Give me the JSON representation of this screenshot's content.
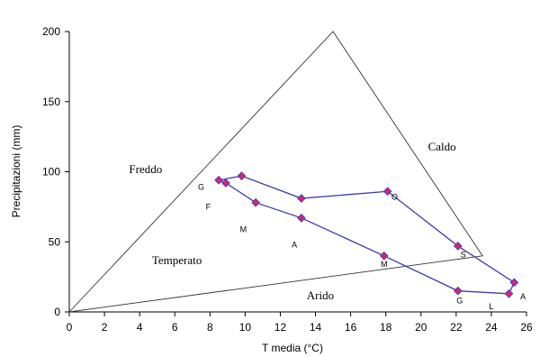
{
  "chart_data": {
    "type": "scatter",
    "xlabel": "T  media (°C)",
    "ylabel": "Precipitazioni (mm)",
    "xlim": [
      0,
      26
    ],
    "ylim": [
      0,
      200
    ],
    "x_ticks": [
      "0",
      "2",
      "4",
      "6",
      "8",
      "10",
      "12",
      "14",
      "16",
      "18",
      "20",
      "22",
      "24",
      "26"
    ],
    "y_ticks": [
      "0",
      "50",
      "100",
      "150",
      "200"
    ],
    "grid": false,
    "line_color": "#3b3bb0",
    "marker_fill": "#e0206a",
    "marker_stroke": "#4444c0",
    "climograph": {
      "x": [
        8.5,
        9.8,
        13.2,
        18.1,
        22.1,
        25.3,
        25.0,
        22.1,
        17.9,
        13.2,
        10.6,
        8.9
      ],
      "y": [
        94,
        97,
        81,
        86,
        47,
        21,
        13,
        15,
        40,
        67,
        78,
        92
      ]
    },
    "month_labels": [
      {
        "text": "G",
        "x": 7.5,
        "y": 87
      },
      {
        "text": "F",
        "x": 7.9,
        "y": 73
      },
      {
        "text": "M",
        "x": 9.9,
        "y": 57
      },
      {
        "text": "A",
        "x": 12.8,
        "y": 46
      },
      {
        "text": "M",
        "x": 17.9,
        "y": 32
      },
      {
        "text": "G",
        "x": 22.2,
        "y": 6
      },
      {
        "text": "L",
        "x": 24.0,
        "y": 2
      },
      {
        "text": "A",
        "x": 25.8,
        "y": 9
      },
      {
        "text": "S",
        "x": 22.4,
        "y": 39
      },
      {
        "text": "O",
        "x": 18.5,
        "y": 80
      }
    ],
    "region_labels": [
      {
        "text": "Freddo",
        "x": 3.4,
        "y": 99
      },
      {
        "text": "Temperato",
        "x": 4.7,
        "y": 34
      },
      {
        "text": "Caldo",
        "x": 20.4,
        "y": 115
      },
      {
        "text": "Arido",
        "x": 13.5,
        "y": 9
      }
    ],
    "triangle": {
      "x": [
        0,
        15,
        23.5
      ],
      "y": [
        0,
        200,
        40
      ]
    }
  }
}
